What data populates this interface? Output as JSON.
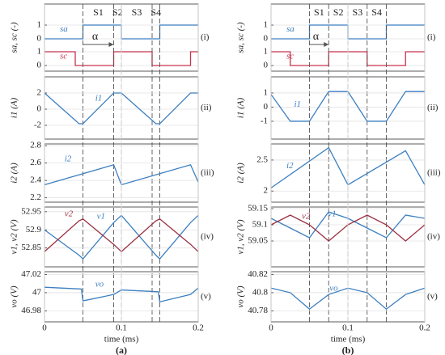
{
  "chart_data": [
    {
      "type": "line",
      "ylabel": "sa, sc (-)",
      "panel_label": "(i)",
      "xlim": [
        0,
        0.2
      ],
      "x": [
        0,
        0.04,
        0.04,
        0.05,
        0.05,
        0.09,
        0.09,
        0.1,
        0.1,
        0.14,
        0.14,
        0.15,
        0.15,
        0.19,
        0.19,
        0.2
      ],
      "series": [
        {
          "name": "sa",
          "color": "#3c7fc0",
          "axis": "y2",
          "values": [
            0,
            0,
            0,
            0,
            1,
            1,
            1,
            1,
            0,
            0,
            0,
            0,
            1,
            1,
            1,
            1
          ]
        },
        {
          "name": "sc",
          "color": "#c8334f",
          "values": [
            1,
            1,
            0,
            0,
            0,
            0,
            1,
            1,
            1,
            1,
            0,
            0,
            0,
            0,
            1,
            1
          ]
        }
      ],
      "ylim": [
        -0.41,
        4.47
      ],
      "yticks": [
        0,
        1
      ],
      "y2lim": [
        -2.35,
        2.53
      ],
      "y2ticks": [
        0,
        1
      ],
      "switch_lines": [
        0.05,
        0.09,
        0.1,
        0.14,
        0.15
      ],
      "switch_labels": [
        "S1",
        "S2",
        "S3",
        "S4"
      ],
      "alpha_label": "α",
      "grid": true
    },
    {
      "type": "line",
      "ylabel": "i1 (A)",
      "panel_label": "(ii)",
      "xlim": [
        0,
        0.2
      ],
      "x": [
        0,
        0.045,
        0.05,
        0.09,
        0.1,
        0.145,
        0.15,
        0.19,
        0.2
      ],
      "series": [
        {
          "name": "i1",
          "color": "#3c7fc0",
          "values": [
            2,
            -1.8,
            -1.8,
            2,
            2,
            -1.8,
            -1.8,
            2,
            2
          ]
        }
      ],
      "ylim": [
        -3.7,
        4
      ],
      "yticks": [
        -2,
        0,
        2
      ],
      "grid": true
    },
    {
      "type": "line",
      "ylabel": "i2 (A)",
      "panel_label": "(iii)",
      "xlim": [
        0,
        0.2
      ],
      "x": [
        0,
        0.09,
        0.1,
        0.19,
        0.2
      ],
      "series": [
        {
          "name": "i2",
          "color": "#3c7fc0",
          "values": [
            2.35,
            2.58,
            2.35,
            2.58,
            2.38
          ]
        }
      ],
      "ylim": [
        2.15,
        2.82
      ],
      "yticks": [
        2.2,
        2.4,
        2.6,
        2.8
      ],
      "grid": true
    },
    {
      "type": "line",
      "ylabel": "v1, v2 (V)",
      "panel_label": "(iv)",
      "xlim": [
        0,
        0.2
      ],
      "x": [
        0,
        0.045,
        0.05,
        0.09,
        0.1,
        0.145,
        0.15,
        0.19,
        0.2
      ],
      "series": [
        {
          "name": "v1",
          "color": "#3c7fc0",
          "values": [
            52.9,
            52.83,
            52.82,
            52.92,
            52.94,
            52.83,
            52.82,
            52.92,
            52.94
          ]
        },
        {
          "name": "v2",
          "color": "#9b3042",
          "values": [
            52.84,
            52.925,
            52.93,
            52.86,
            52.84,
            52.925,
            52.93,
            52.86,
            52.84
          ]
        }
      ],
      "ylim": [
        52.798,
        52.963
      ],
      "yticks": [
        52.85,
        52.9,
        52.95
      ],
      "grid": true
    },
    {
      "type": "line",
      "ylabel": "vo (V)",
      "panel_label": "(v)",
      "xlim": [
        0,
        0.2
      ],
      "x": [
        0,
        0.048,
        0.05,
        0.09,
        0.1,
        0.148,
        0.15,
        0.19,
        0.2
      ],
      "series": [
        {
          "name": "vo",
          "color": "#3c7fc0",
          "values": [
            47.006,
            47.004,
            46.991,
            46.998,
            47.003,
            47.001,
            46.99,
            46.998,
            47.005
          ]
        }
      ],
      "ylim": [
        46.968,
        47.023
      ],
      "yticks": [
        46.98,
        47,
        47.02
      ],
      "xticks": [
        0,
        0.1,
        0.2
      ],
      "xlabel": "time (ms)",
      "caption": "(a)",
      "grid": true
    },
    {
      "type": "line",
      "ylabel": "sa, sc (-)",
      "panel_label": "(i)",
      "xlim": [
        0,
        0.2
      ],
      "x": [
        0,
        0.025,
        0.025,
        0.05,
        0.05,
        0.075,
        0.075,
        0.1,
        0.1,
        0.125,
        0.125,
        0.15,
        0.15,
        0.175,
        0.175,
        0.2
      ],
      "series": [
        {
          "name": "sa",
          "color": "#3c7fc0",
          "axis": "y2",
          "values": [
            0,
            0,
            0,
            0,
            1,
            1,
            1,
            1,
            0,
            0,
            0,
            0,
            1,
            1,
            1,
            1
          ]
        },
        {
          "name": "sc",
          "color": "#c8334f",
          "values": [
            1,
            1,
            0,
            0,
            0,
            0,
            1,
            1,
            1,
            1,
            0,
            0,
            0,
            0,
            1,
            1
          ]
        }
      ],
      "ylim": [
        -0.41,
        4.47
      ],
      "yticks": [
        0,
        1
      ],
      "y2lim": [
        -2.35,
        2.53
      ],
      "y2ticks": [
        0,
        1
      ],
      "switch_lines": [
        0.05,
        0.075,
        0.1,
        0.125,
        0.15
      ],
      "switch_labels": [
        "S1",
        "S2",
        "S3",
        "S4"
      ],
      "alpha_label": "α",
      "grid": true
    },
    {
      "type": "line",
      "ylabel": "i1 (A)",
      "panel_label": "(ii)",
      "xlim": [
        0,
        0.2
      ],
      "x": [
        0,
        0.025,
        0.05,
        0.075,
        0.1,
        0.125,
        0.15,
        0.175,
        0.2
      ],
      "series": [
        {
          "name": "i1",
          "color": "#3c7fc0",
          "values": [
            0.9,
            -1,
            -1,
            1.1,
            1.1,
            -1,
            -1,
            1.1,
            1.1
          ]
        }
      ],
      "ylim": [
        -2.26,
        2.14
      ],
      "yticks": [
        -1,
        0,
        1
      ],
      "grid": true
    },
    {
      "type": "line",
      "ylabel": "i2 (A)",
      "panel_label": "(iii)",
      "xlim": [
        0,
        0.2
      ],
      "x": [
        0,
        0.075,
        0.1,
        0.175,
        0.2
      ],
      "series": [
        {
          "name": "i2",
          "color": "#3c7fc0",
          "values": [
            2.05,
            2.7,
            2.1,
            2.65,
            2.1
          ]
        }
      ],
      "ylim": [
        1.82,
        2.76
      ],
      "yticks": [
        2,
        2.5
      ],
      "grid": true
    },
    {
      "type": "line",
      "ylabel": "v1, v2 (V)",
      "panel_label": "(iv)",
      "xlim": [
        0,
        0.2
      ],
      "x": [
        0,
        0.025,
        0.05,
        0.075,
        0.1,
        0.125,
        0.15,
        0.175,
        0.2
      ],
      "series": [
        {
          "name": "v1",
          "color": "#3c7fc0",
          "values": [
            59.12,
            59.09,
            59.06,
            59.14,
            59.12,
            59.09,
            59.06,
            59.13,
            59.12
          ]
        },
        {
          "name": "v2",
          "color": "#9b3042",
          "values": [
            59.1,
            59.13,
            59.1,
            59.05,
            59.1,
            59.13,
            59.1,
            59.05,
            59.1
          ]
        }
      ],
      "ylim": [
        58.97,
        59.155
      ],
      "yticks": [
        59.05,
        59.1,
        59.15
      ],
      "grid": true
    },
    {
      "type": "line",
      "ylabel": "vo (V)",
      "panel_label": "(v)",
      "xlim": [
        0,
        0.2
      ],
      "x": [
        0,
        0.025,
        0.05,
        0.075,
        0.1,
        0.125,
        0.15,
        0.175,
        0.2
      ],
      "series": [
        {
          "name": "vo",
          "color": "#3c7fc0",
          "values": [
            40.805,
            40.8,
            40.782,
            40.798,
            40.805,
            40.8,
            40.782,
            40.798,
            40.805
          ]
        }
      ],
      "ylim": [
        40.768,
        40.823
      ],
      "yticks": [
        40.78,
        40.8,
        40.82
      ],
      "xticks": [
        0,
        0.1,
        0.2
      ],
      "xlabel": "time (ms)",
      "caption": "(b)",
      "grid": true
    }
  ]
}
